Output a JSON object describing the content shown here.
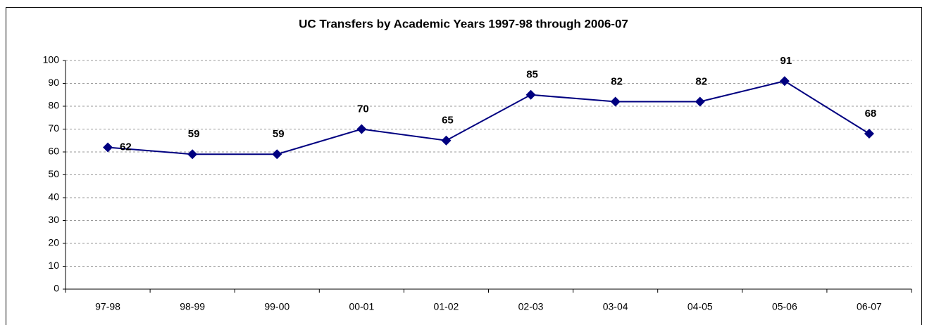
{
  "chart_data": {
    "type": "line",
    "title": "UC Transfers by Academic Years 1997-98 through 2006-07",
    "categories": [
      "97-98",
      "98-99",
      "99-00",
      "00-01",
      "01-02",
      "02-03",
      "03-04",
      "04-05",
      "05-06",
      "06-07"
    ],
    "series": [
      {
        "name": "UC Transfers",
        "color": "#000080",
        "values": [
          62,
          59,
          59,
          70,
          65,
          85,
          82,
          82,
          91,
          68
        ]
      }
    ],
    "ylim": [
      0,
      100
    ],
    "yticks": [
      0,
      10,
      20,
      30,
      40,
      50,
      60,
      70,
      80,
      90,
      100
    ],
    "grid": true
  }
}
